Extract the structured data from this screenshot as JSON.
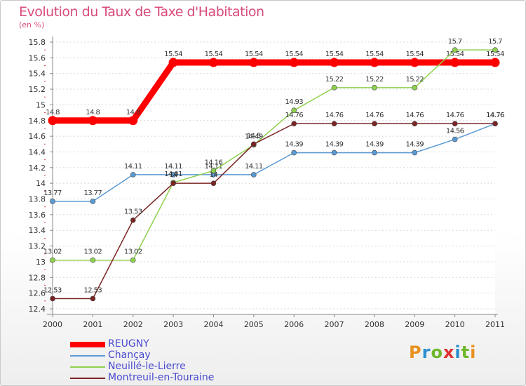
{
  "header": {
    "title": "Evolution du Taux de Taxe d'Habitation",
    "subtitle": "(en %)"
  },
  "brand": {
    "name": "Proxiti",
    "letter_colors": [
      "#e8911e",
      "#2b8fd0",
      "#6fb82c",
      "#e02f2f",
      "#2b8fd0",
      "#6fb82c",
      "#e8911e"
    ]
  },
  "chart_data": {
    "type": "line",
    "x": [
      "2000",
      "2001",
      "2002",
      "2003",
      "2004",
      "2005",
      "2006",
      "2007",
      "2008",
      "2009",
      "2010",
      "2011"
    ],
    "yticks": [
      "12.4",
      "12.6",
      "12.8",
      "13",
      "13.2",
      "13.4",
      "13.6",
      "13.8",
      "14",
      "14.2",
      "14.4",
      "14.6",
      "14.8",
      "15",
      "15.2",
      "15.4",
      "15.6",
      "15.8"
    ],
    "ylim": [
      12.4,
      15.8
    ],
    "grid": "horizontal dashed",
    "legend_position": "bottom-left",
    "series": [
      {
        "name": "REUGNY",
        "color": "#ff0000",
        "values": [
          14.8,
          14.8,
          14.8,
          15.54,
          15.54,
          15.54,
          15.54,
          15.54,
          15.54,
          15.54,
          15.54,
          15.54
        ],
        "labels": [
          "14.8",
          "14.8",
          "14.8",
          "15.54",
          "15.54",
          "15.54",
          "15.54",
          "15.54",
          "15.54",
          "15.54",
          "15.54",
          "15.54"
        ]
      },
      {
        "name": "Chançay",
        "color": "#5b9bd5",
        "values": [
          13.77,
          13.77,
          14.11,
          14.11,
          14.11,
          14.11,
          14.39,
          14.39,
          14.39,
          14.39,
          14.56,
          14.76
        ],
        "labels": [
          "13.77",
          "13.77",
          "14.11",
          "14.11",
          "14.11",
          "14.11",
          "14.39",
          "14.39",
          "14.39",
          "14.39",
          "14.56",
          "14.76"
        ]
      },
      {
        "name": "Neuillé-le-Lierre",
        "color": "#8fd14f",
        "values": [
          13.02,
          13.02,
          13.02,
          14.01,
          14.16,
          14.49,
          14.93,
          15.22,
          15.22,
          15.22,
          15.7,
          15.7
        ],
        "labels": [
          "13.02",
          "13.02",
          "13.02",
          "14.01",
          "14.16",
          "14.49",
          "14.93",
          "15.22",
          "15.22",
          "15.22",
          "15.7",
          "15.7"
        ]
      },
      {
        "name": "Montreuil-en-Touraine",
        "color": "#7a2424",
        "values": [
          12.53,
          12.53,
          13.53,
          14,
          14,
          14.5,
          14.76,
          14.76,
          14.76,
          14.76,
          14.76,
          14.76
        ],
        "labels": [
          "12.53",
          "12.53",
          "13.53",
          "14",
          "14",
          "14.5",
          "14.76",
          "14.76",
          "14.76",
          "14.76",
          "14.76",
          "14.76"
        ]
      }
    ]
  }
}
